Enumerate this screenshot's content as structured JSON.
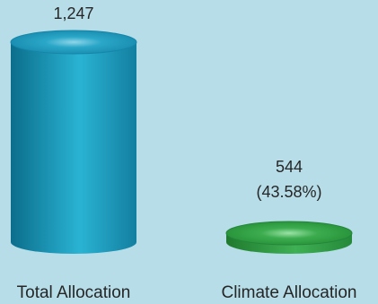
{
  "chart_data": {
    "type": "bar",
    "style": "3d-cylinder",
    "categories": [
      "Total Allocation",
      "Climate Allocation"
    ],
    "values": [
      1247,
      544
    ],
    "value_labels": [
      "1,247",
      "544"
    ],
    "percent_labels": [
      "",
      "(43.58%)"
    ],
    "ylim": [
      0,
      1247
    ],
    "grid": false,
    "legend": "none",
    "colors": {
      "background": "#b6dde8",
      "total_side_dark": "#0b6e8c",
      "total_side_light": "#2ab3d3",
      "total_top": "#1a9fc2",
      "climate_side_dark": "#1f7a2e",
      "climate_side_light": "#3fb054",
      "climate_top": "#2e9a3f"
    }
  }
}
